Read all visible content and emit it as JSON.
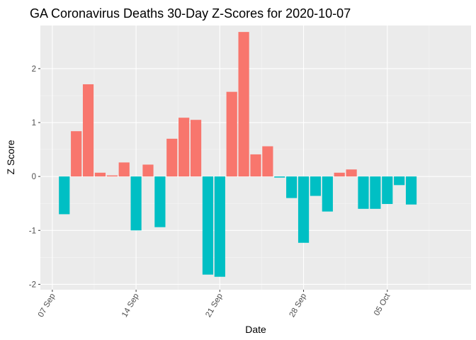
{
  "chart_data": {
    "type": "bar",
    "title": "GA Coronavirus Deaths 30-Day Z-Scores for 2020-10-07",
    "xlabel": "Date",
    "ylabel": "Z Score",
    "ylim": [
      -2.1,
      2.8
    ],
    "y_ticks": [
      -2,
      -1,
      0,
      1,
      2
    ],
    "y_tick_labels": [
      "-2",
      "-1",
      "0",
      "1",
      "2"
    ],
    "x_range_days": [
      -1,
      35
    ],
    "x_tick_days": [
      0,
      7,
      14,
      21,
      28
    ],
    "x_tick_labels": [
      "07 Sep",
      "14 Sep",
      "21 Sep",
      "28 Sep",
      "05 Oct"
    ],
    "start_date": "2020-09-07",
    "categories": [
      "2020-09-08",
      "2020-09-09",
      "2020-09-10",
      "2020-09-11",
      "2020-09-12",
      "2020-09-13",
      "2020-09-14",
      "2020-09-15",
      "2020-09-16",
      "2020-09-17",
      "2020-09-18",
      "2020-09-19",
      "2020-09-20",
      "2020-09-21",
      "2020-09-22",
      "2020-09-23",
      "2020-09-24",
      "2020-09-25",
      "2020-09-26",
      "2020-09-27",
      "2020-09-28",
      "2020-09-29",
      "2020-09-30",
      "2020-10-01",
      "2020-10-02",
      "2020-10-03",
      "2020-10-04",
      "2020-10-05",
      "2020-10-06",
      "2020-10-07"
    ],
    "values": [
      -0.7,
      0.84,
      1.71,
      0.07,
      0.02,
      0.26,
      -1.0,
      0.22,
      -0.94,
      0.7,
      1.09,
      1.05,
      -1.82,
      -1.86,
      1.57,
      2.68,
      0.41,
      0.56,
      -0.02,
      -0.4,
      -1.23,
      -0.36,
      -0.65,
      0.07,
      0.13,
      -0.6,
      -0.6,
      -0.51,
      -0.16,
      -0.52
    ],
    "colors": {
      "positive": "#F8766D",
      "negative": "#00BFC4",
      "panel": "#EBEBEB",
      "grid_major": "#FFFFFF",
      "grid_minor": "#F5F5F5"
    }
  }
}
